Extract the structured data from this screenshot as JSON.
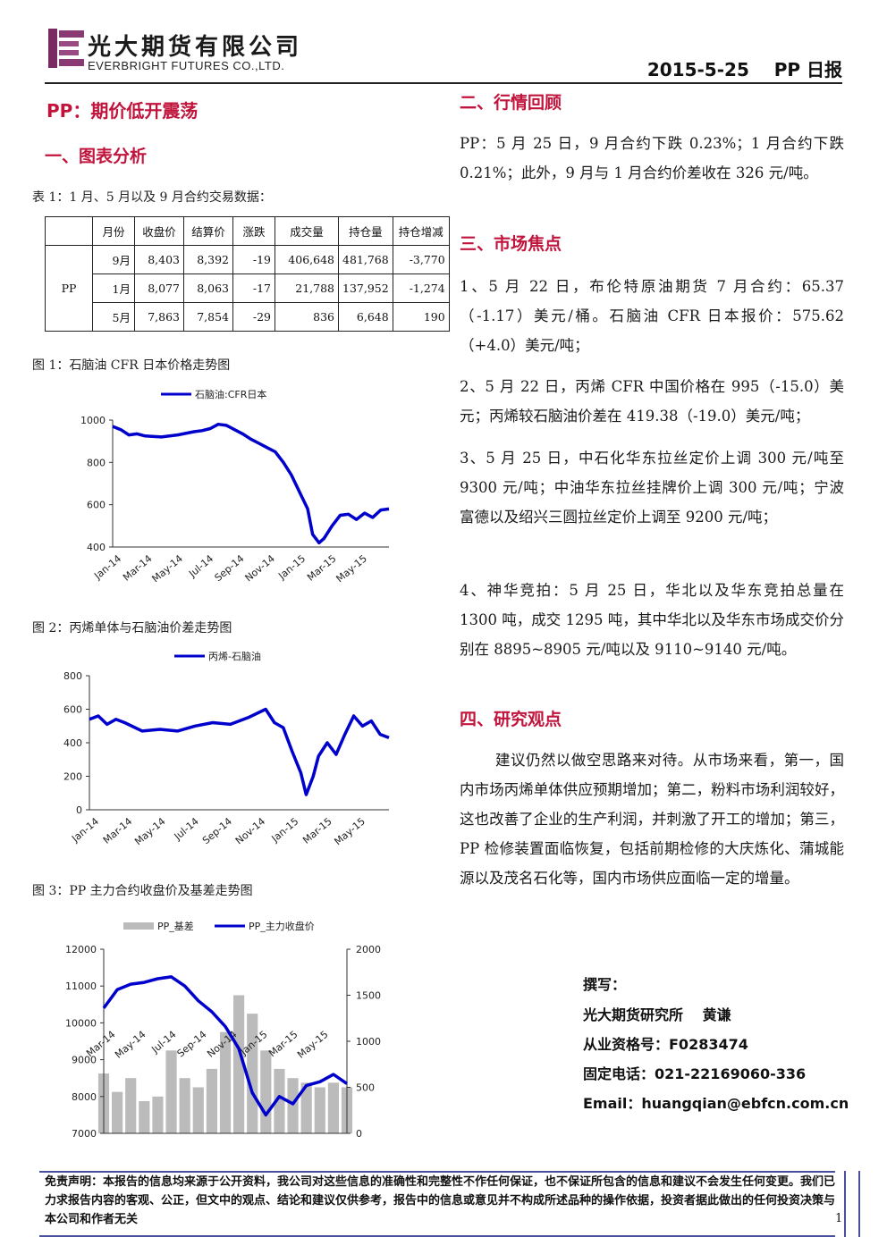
{
  "header": {
    "company_cn": "光大期货有限公司",
    "company_en": "EVERBRIGHT FUTURES CO.,LTD.",
    "date_product": "2015-5-25    PP 日报"
  },
  "title": "PP：期价低开震荡",
  "section1": {
    "heading": "一、图表分析",
    "table_caption": "表 1：1 月、5 月以及 9 月合约交易数据：",
    "table": {
      "columns": [
        "",
        "月份",
        "收盘价",
        "结算价",
        "涨跌",
        "成交量",
        "持仓量",
        "持仓增减"
      ],
      "product": "PP",
      "rows": [
        [
          "9月",
          "8,403",
          "8,392",
          "-19",
          "406,648",
          "481,768",
          "-3,770"
        ],
        [
          "1月",
          "8,077",
          "8,063",
          "-17",
          "21,788",
          "137,952",
          "-1,274"
        ],
        [
          "5月",
          "7,863",
          "7,854",
          "-29",
          "836",
          "6,648",
          "190"
        ]
      ]
    },
    "fig1_caption": "图 1：石脑油 CFR 日本价格走势图",
    "fig2_caption": "图 2：丙烯单体与石脑油价差走势图",
    "fig3_caption": "图 3：PP 主力合约收盘价及基差走势图"
  },
  "section2": {
    "heading": "二、行情回顾",
    "text": "PP：5 月 25 日，9 月合约下跌 0.23%；1 月合约下跌 0.21%；此外，9 月与 1 月合约价差收在 326 元/吨。"
  },
  "section3": {
    "heading": "三、市场焦点",
    "items": [
      "1、5 月 22 日，布伦特原油期货 7 月合约：65.37（-1.17）美元/桶。石脑油 CFR 日本报价：575.62（+4.0）美元/吨；",
      "2、5 月 22 日，丙烯 CFR 中国价格在 995（-15.0）美元；丙烯较石脑油价差在 419.38（-19.0）美元/吨；",
      "3、5 月 25 日，中石化华东拉丝定价上调 300 元/吨至 9300 元/吨；中油华东拉丝挂牌价上调 300 元/吨；宁波富德以及绍兴三圆拉丝定价上调至 9200 元/吨；",
      "4、神华竞拍：5 月 25 日，华北以及华东竞拍总量在 1300 吨，成交 1295 吨，其中华北以及华东市场成交价分别在 8895~8905 元/吨以及 9110~9140 元/吨。"
    ]
  },
  "section4": {
    "heading": "四、研究观点",
    "text": "建议仍然以做空思路来对待。从市场来看，第一，国内市场丙烯单体供应预期增加；第二，粉料市场利润较好，这也改善了企业的生产利润，并刺激了开工的增加；第三，PP 检修装置面临恢复，包括前期检修的大庆炼化、蒲城能源以及茂名石化等，国内市场供应面临一定的增量。"
  },
  "author": {
    "label": "撰写：",
    "line1": "光大期货研究所　 黄谦",
    "line2": "从业资格号：F0283474",
    "line3": "固定电话：021-22169060-336",
    "line4": "Email：huangqian@ebfcn.com.cn"
  },
  "footer": {
    "disclaimer": "免责声明：本报告的信息均来源于公开资料，我公司对这些信息的准确性和完整性不作任何保证，也不保证所包含的信息和建议不会发生任何变更。我们已力求报告内容的客观、公正，但文中的观点、结论和建议仅供参考，报告中的信息或意见并不构成所述品种的操作依据，投资者据此做出的任何投资决策与本公司和作者无关",
    "page": "1"
  },
  "colors": {
    "accent": "#c0143c",
    "line": "#0000cc",
    "bar": "#bbbbbb",
    "footer_rule": "#4a4fa0"
  },
  "chart_data": [
    {
      "type": "line",
      "legend": "石脑油:CFR日本",
      "x_ticks": [
        "Jan-14",
        "Mar-14",
        "May-14",
        "Jul-14",
        "Sep-14",
        "Nov-14",
        "Jan-15",
        "Mar-15",
        "May-15"
      ],
      "ylim": [
        400,
        1000
      ],
      "y_ticks": [
        400,
        600,
        800,
        1000
      ],
      "series": [
        {
          "name": "石脑油:CFR日本",
          "x": [
            0,
            0.5,
            1,
            1.5,
            2,
            3,
            4,
            5,
            5.5,
            6,
            6.5,
            7,
            7.5,
            8,
            8.5,
            9,
            9.5,
            10,
            10.5,
            11,
            11.5,
            12,
            12.3,
            12.7,
            13,
            13.5,
            14,
            14.5,
            15,
            15.5,
            16,
            16.5,
            17
          ],
          "values": [
            970,
            955,
            930,
            935,
            925,
            920,
            930,
            945,
            950,
            960,
            980,
            975,
            955,
            935,
            910,
            890,
            870,
            850,
            800,
            740,
            660,
            580,
            460,
            420,
            440,
            500,
            550,
            555,
            530,
            560,
            540,
            575,
            580
          ]
        }
      ]
    },
    {
      "type": "line",
      "legend": "丙烯-石脑油",
      "x_ticks": [
        "Jan-14",
        "Mar-14",
        "May-14",
        "Jul-14",
        "Sep-14",
        "Nov-14",
        "Jan-15",
        "Mar-15",
        "May-15"
      ],
      "ylim": [
        0,
        800
      ],
      "y_ticks": [
        0,
        200,
        400,
        600,
        800
      ],
      "series": [
        {
          "name": "丙烯-石脑油",
          "x": [
            0,
            0.5,
            1,
            1.5,
            2,
            3,
            4,
            5,
            6,
            7,
            8,
            9,
            10,
            10.5,
            11,
            11.5,
            12,
            12.3,
            12.7,
            13,
            13.5,
            14,
            14.5,
            15,
            15.5,
            16,
            16.5,
            17
          ],
          "values": [
            540,
            560,
            510,
            540,
            520,
            470,
            480,
            470,
            500,
            520,
            510,
            550,
            600,
            520,
            490,
            350,
            220,
            90,
            200,
            320,
            400,
            330,
            450,
            560,
            500,
            530,
            450,
            430
          ]
        }
      ]
    },
    {
      "type": "bar+line",
      "legend": [
        "PP_基差",
        "PP_主力收盘价"
      ],
      "x_ticks": [
        "Mar-14",
        "May-14",
        "Jul-14",
        "Sep-14",
        "Nov-14",
        "Jan-15",
        "Mar-15",
        "May-15"
      ],
      "ylim_left": [
        7000,
        12000
      ],
      "y_ticks_left": [
        7000,
        8000,
        9000,
        10000,
        11000,
        12000
      ],
      "ylim_right": [
        0,
        2000
      ],
      "y_ticks_right": [
        0,
        500,
        1000,
        1500,
        2000
      ],
      "series": [
        {
          "name": "PP_主力收盘价",
          "x": [
            0,
            1,
            2,
            3,
            4,
            5,
            6,
            7,
            8,
            9,
            10,
            11,
            12,
            13,
            14,
            15,
            16,
            17,
            18
          ],
          "values": [
            10400,
            10900,
            11050,
            11100,
            11200,
            11250,
            11000,
            10600,
            10300,
            9900,
            9300,
            8100,
            7500,
            8000,
            7800,
            8300,
            8400,
            8600,
            8350
          ]
        },
        {
          "name": "PP_基差",
          "x": [
            0,
            1,
            2,
            3,
            4,
            5,
            6,
            7,
            8,
            9,
            10,
            11,
            12,
            13,
            14,
            15,
            16,
            17,
            18
          ],
          "values": [
            650,
            450,
            600,
            350,
            400,
            900,
            600,
            500,
            700,
            1100,
            1500,
            1300,
            900,
            700,
            600,
            550,
            500,
            550,
            500
          ]
        }
      ]
    }
  ]
}
